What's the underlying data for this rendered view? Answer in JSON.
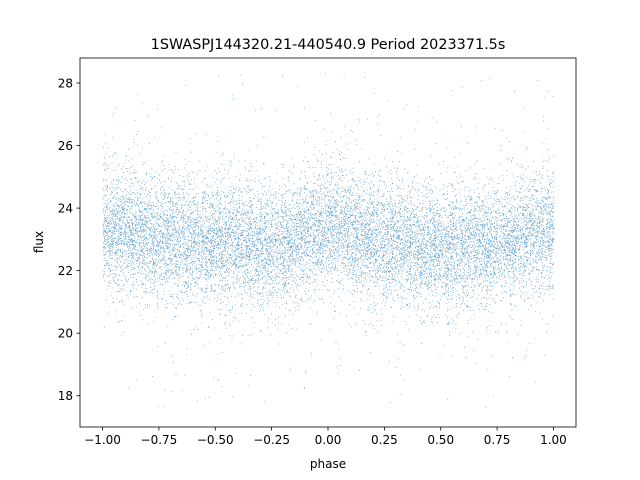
{
  "chart_data": {
    "type": "scatter",
    "title": "1SWASPJ144320.21-440540.9 Period 2023371.5s",
    "xlabel": "phase",
    "ylabel": "flux",
    "xlim": [
      -1.1,
      1.1
    ],
    "ylim": [
      17.0,
      28.8
    ],
    "x_ticks": [
      -1.0,
      -0.75,
      -0.5,
      -0.25,
      0.0,
      0.25,
      0.5,
      0.75,
      1.0
    ],
    "x_tick_labels": [
      "−1.00",
      "−0.75",
      "−0.50",
      "−0.25",
      "0.00",
      "0.25",
      "0.50",
      "0.75",
      "1.00"
    ],
    "y_ticks": [
      18,
      20,
      22,
      24,
      26,
      28
    ],
    "y_tick_labels": [
      "18",
      "20",
      "22",
      "24",
      "26",
      "28"
    ],
    "grid": false,
    "series": [
      {
        "color": "#1f77b4",
        "point_count_approx": 30000,
        "x_range": [
          -1.0,
          1.0
        ],
        "y_core_range": [
          21.0,
          25.0
        ],
        "y_full_range": [
          17.5,
          28.3
        ],
        "mean_flux_profile": {
          "phase": [
            -1.0,
            -0.75,
            -0.5,
            -0.25,
            0.0,
            0.25,
            0.5,
            0.75,
            1.0
          ],
          "flux": [
            23.4,
            23.0,
            22.9,
            22.7,
            23.4,
            22.9,
            22.7,
            22.9,
            23.4
          ]
        }
      }
    ]
  }
}
